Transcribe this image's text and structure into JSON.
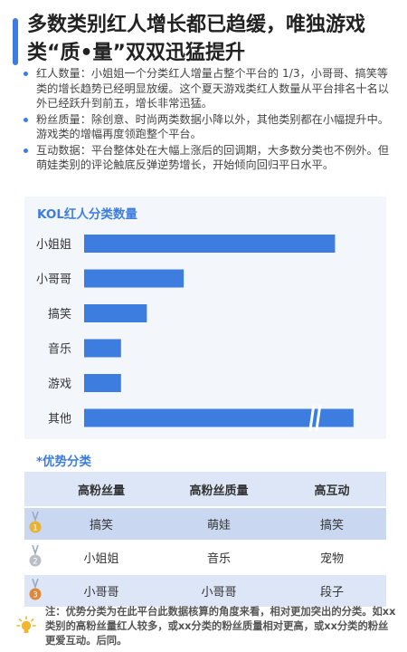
{
  "title": "多数类别红人增长都已趋缓，唯独游戏类“质•量”双双迅猛提升",
  "bullets": [
    "红人数量：小姐姐一个分类红人增量占整个平台的 1/3，小哥哥、搞笑等类的增长趋势已经明显放缓。这个夏天游戏类红人数量从平台排名十名以外已经跃升到前五，增长非常迅猛。",
    "粉丝质量：除创意、时尚两类数据小降以外，其他类别都在小幅提升中。游戏类的增幅再度领跑整个平台。",
    "互动数据：平台整体处在大幅上涨后的回调期，大多数分类也不例外。但萌娃类别的评论触底反弹逆势增长，开始倾向回归平日水平。"
  ],
  "chart_data": {
    "type": "bar",
    "orientation": "horizontal",
    "title": "KOL红人分类数量",
    "categories": [
      "小姐姐",
      "小哥哥",
      "搞笑",
      "音乐",
      "游戏",
      "其他"
    ],
    "values": [
      68,
      27,
      17,
      10,
      10,
      73
    ],
    "broken_axis": [
      "其他"
    ],
    "xlim": [
      0,
      75
    ],
    "bar_color": "#3d7de0",
    "grid": false
  },
  "advantage": {
    "title": "*优势分类",
    "headers": [
      "高粉丝量",
      "高粉丝质量",
      "高互动"
    ],
    "rows": [
      {
        "rank_icon": "gold-medal-icon",
        "rank": "1",
        "cells": [
          "搞笑",
          "萌娃",
          "搞笑"
        ]
      },
      {
        "rank_icon": "silver-medal-icon",
        "rank": "2",
        "cells": [
          "小姐姐",
          "音乐",
          "宠物"
        ]
      },
      {
        "rank_icon": "bronze-medal-icon",
        "rank": "3",
        "cells": [
          "小哥哥",
          "小哥哥",
          "段子"
        ]
      }
    ]
  },
  "note": "注：优势分类为在此平台此数据核算的角度来看，相对更加突出的分类。如xx类别的高粉丝量红人较多，或xx分类的粉丝质量相对更高，或xx分类的粉丝更爱互动。后同。",
  "colors": {
    "accent": "#3d7de0",
    "gold": "#e8b13a",
    "silver": "#b9bfc8",
    "bronze": "#e0883a"
  }
}
